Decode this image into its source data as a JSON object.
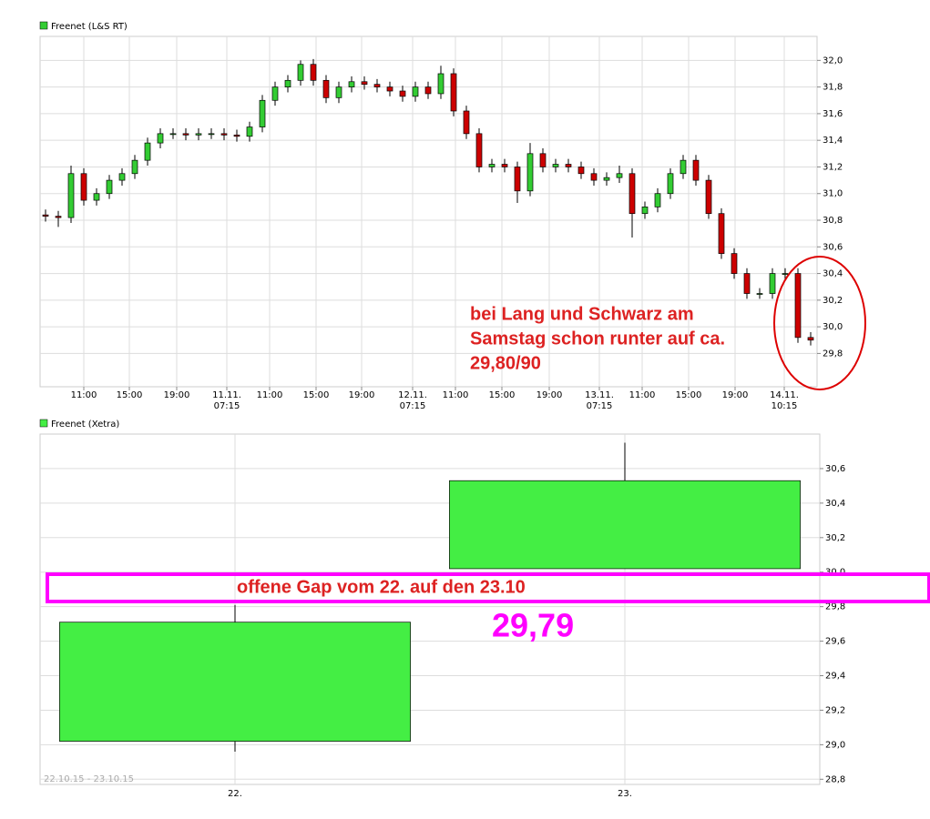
{
  "chart_data": [
    {
      "type": "candlestick",
      "xlim": [
        0,
        853
      ],
      "xticks": [
        {
          "value": 48,
          "label": [
            "11:00"
          ]
        },
        {
          "value": 98,
          "label": [
            "15:00"
          ]
        },
        {
          "value": 150,
          "label": [
            "19:00"
          ]
        },
        {
          "value": 205,
          "label": [
            "11.11.",
            "07:15"
          ]
        },
        {
          "value": 252,
          "label": [
            "11:00"
          ]
        },
        {
          "value": 303,
          "label": [
            "15:00"
          ]
        },
        {
          "value": 353,
          "label": [
            "19:00"
          ]
        },
        {
          "value": 409,
          "label": [
            "12.11.",
            "07:15"
          ]
        },
        {
          "value": 456,
          "label": [
            "11:00"
          ]
        },
        {
          "value": 507,
          "label": [
            "15:00"
          ]
        },
        {
          "value": 559,
          "label": [
            "19:00"
          ]
        },
        {
          "value": 614,
          "label": [
            "13.11.",
            "07:15"
          ]
        },
        {
          "value": 661,
          "label": [
            "11:00"
          ]
        },
        {
          "value": 712,
          "label": [
            "15:00"
          ]
        },
        {
          "value": 763,
          "label": [
            "19:00"
          ]
        },
        {
          "value": 817,
          "label": [
            "14.11.",
            "10:15"
          ]
        }
      ],
      "ylim": [
        29.55,
        32.18
      ],
      "yticks": [
        {
          "value": 29.8,
          "label": "29,8"
        },
        {
          "value": 30.0,
          "label": "30,0"
        },
        {
          "value": 30.2,
          "label": "30,2"
        },
        {
          "value": 30.4,
          "label": "30,4"
        },
        {
          "value": 30.6,
          "label": "30,6"
        },
        {
          "value": 30.8,
          "label": "30,8"
        },
        {
          "value": 31.0,
          "label": "31,0"
        },
        {
          "value": 31.2,
          "label": "31,2"
        },
        {
          "value": 31.4,
          "label": "31,4"
        },
        {
          "value": 31.6,
          "label": "31,6"
        },
        {
          "value": 31.8,
          "label": "31,8"
        },
        {
          "value": 32.0,
          "label": "32,0"
        }
      ],
      "grid": true,
      "series": [
        {
          "name": "Freenet (L&S RT)",
          "color": "#33cc33",
          "up_color": "#33cc33",
          "down_color": "#cc0000",
          "x": [
            6,
            20,
            34,
            48,
            62,
            76,
            90,
            104,
            118,
            132,
            146,
            160,
            174,
            188,
            202,
            216,
            230,
            244,
            258,
            272,
            286,
            300,
            314,
            328,
            342,
            356,
            370,
            384,
            398,
            412,
            426,
            440,
            454,
            468,
            482,
            496,
            510,
            524,
            538,
            552,
            566,
            580,
            594,
            608,
            622,
            636,
            650,
            664,
            678,
            692,
            706,
            720,
            734,
            748,
            762,
            776,
            790,
            804,
            818,
            832,
            846
          ],
          "open": [
            30.84,
            30.83,
            30.82,
            31.15,
            30.95,
            31.0,
            31.1,
            31.15,
            31.25,
            31.38,
            31.45,
            31.45,
            31.44,
            31.45,
            31.45,
            31.44,
            31.43,
            31.5,
            31.7,
            31.8,
            31.85,
            31.97,
            31.85,
            31.72,
            31.8,
            31.84,
            31.82,
            31.8,
            31.77,
            31.73,
            31.8,
            31.75,
            31.9,
            31.62,
            31.45,
            31.2,
            31.22,
            31.2,
            31.02,
            31.3,
            31.2,
            31.22,
            31.2,
            31.15,
            31.1,
            31.12,
            31.15,
            30.85,
            30.9,
            31.0,
            31.15,
            31.25,
            31.1,
            30.85,
            30.55,
            30.4,
            30.25,
            30.25,
            30.4,
            30.4,
            29.92
          ],
          "high": [
            30.88,
            30.87,
            31.21,
            31.19,
            31.04,
            31.14,
            31.19,
            31.29,
            31.42,
            31.49,
            31.49,
            31.49,
            31.49,
            31.49,
            31.49,
            31.48,
            31.54,
            31.74,
            31.84,
            31.89,
            32.0,
            32.01,
            31.89,
            31.84,
            31.88,
            31.88,
            31.86,
            31.84,
            31.81,
            31.84,
            31.84,
            31.96,
            31.94,
            31.66,
            31.49,
            31.26,
            31.26,
            31.24,
            31.38,
            31.34,
            31.26,
            31.26,
            31.24,
            31.19,
            31.16,
            31.21,
            31.19,
            30.94,
            31.04,
            31.19,
            31.29,
            31.29,
            31.14,
            30.89,
            30.59,
            30.44,
            30.29,
            30.44,
            30.44,
            30.44,
            29.96
          ],
          "low": [
            30.79,
            30.75,
            30.78,
            30.91,
            30.91,
            30.96,
            31.06,
            31.11,
            31.21,
            31.34,
            31.41,
            31.4,
            31.4,
            31.41,
            31.4,
            31.39,
            31.39,
            31.46,
            31.66,
            31.76,
            31.81,
            31.81,
            31.68,
            31.68,
            31.76,
            31.78,
            31.76,
            31.73,
            31.69,
            31.69,
            31.71,
            31.71,
            31.58,
            31.41,
            31.16,
            31.16,
            31.16,
            30.93,
            30.98,
            31.16,
            31.16,
            31.16,
            31.11,
            31.06,
            31.06,
            31.08,
            30.67,
            30.81,
            30.86,
            30.96,
            31.11,
            31.06,
            30.81,
            30.51,
            30.36,
            30.21,
            30.21,
            30.21,
            30.36,
            29.88,
            29.86
          ],
          "close": [
            30.83,
            30.82,
            31.15,
            30.95,
            31.0,
            31.1,
            31.15,
            31.25,
            31.38,
            31.45,
            31.45,
            31.44,
            31.45,
            31.45,
            31.44,
            31.43,
            31.5,
            31.7,
            31.8,
            31.85,
            31.97,
            31.85,
            31.72,
            31.8,
            31.84,
            31.82,
            31.8,
            31.77,
            31.73,
            31.8,
            31.75,
            31.9,
            31.62,
            31.45,
            31.2,
            31.22,
            31.2,
            31.02,
            31.3,
            31.2,
            31.22,
            31.2,
            31.15,
            31.1,
            31.12,
            31.15,
            30.85,
            30.9,
            31.0,
            31.15,
            31.25,
            31.1,
            30.85,
            30.55,
            30.4,
            30.25,
            30.25,
            30.4,
            30.4,
            29.92,
            29.9
          ]
        }
      ],
      "annotation": [
        "bei Lang und Schwarz am",
        "Samstag schon runter auf ca.",
        "29,80/90"
      ]
    },
    {
      "type": "candlestick",
      "categories": [
        "22.",
        "23."
      ],
      "ylim": [
        28.77,
        30.8
      ],
      "yticks": [
        {
          "value": 28.8,
          "label": "28,8"
        },
        {
          "value": 29.0,
          "label": "29,0"
        },
        {
          "value": 29.2,
          "label": "29,2"
        },
        {
          "value": 29.4,
          "label": "29,4"
        },
        {
          "value": 29.6,
          "label": "29,6"
        },
        {
          "value": 29.8,
          "label": "29,8"
        },
        {
          "value": 30.0,
          "label": "30,0"
        },
        {
          "value": 30.2,
          "label": "30,2"
        },
        {
          "value": 30.4,
          "label": "30,4"
        },
        {
          "value": 30.6,
          "label": "30,6"
        }
      ],
      "grid": true,
      "series": [
        {
          "name": "Freenet (Xetra)",
          "color": "#44ee44",
          "up_color": "#44ee44",
          "down_color": "#cc0000",
          "open": [
            29.02,
            30.02
          ],
          "high": [
            29.81,
            30.75
          ],
          "low": [
            28.96,
            30.02
          ],
          "close": [
            29.71,
            30.53
          ]
        }
      ],
      "date_range": "22.10.15 - 23.10.15",
      "gap_note": "offene Gap vom 22. auf den 23.10",
      "gap_value": "29,79"
    }
  ]
}
